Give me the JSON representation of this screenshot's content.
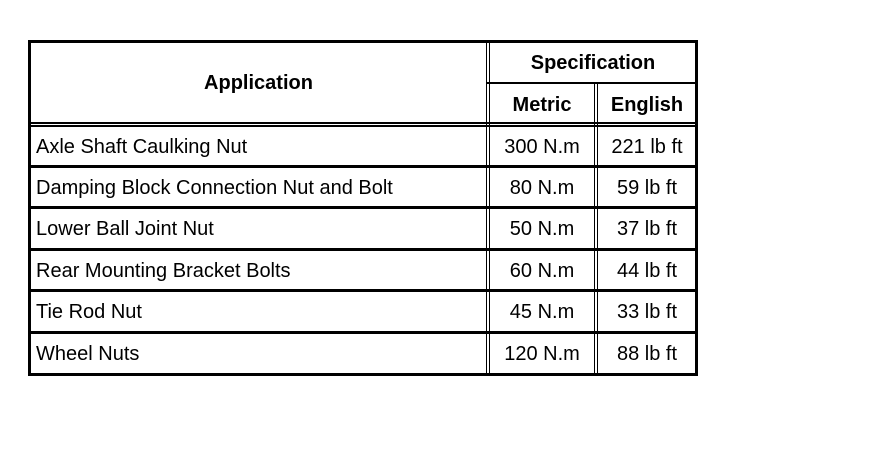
{
  "table": {
    "header": {
      "application": "Application",
      "specification": "Specification",
      "metric": "Metric",
      "english": "English"
    },
    "rows": [
      {
        "application": "Axle Shaft Caulking Nut",
        "metric": "300 N.m",
        "english": "221 lb ft"
      },
      {
        "application": "Damping Block Connection Nut and Bolt",
        "metric": "80 N.m",
        "english": "59 lb ft"
      },
      {
        "application": "Lower Ball Joint Nut",
        "metric": "50 N.m",
        "english": "37 lb ft"
      },
      {
        "application": "Rear Mounting Bracket Bolts",
        "metric": "60 N.m",
        "english": "44 lb ft"
      },
      {
        "application": "Tie Rod Nut",
        "metric": "45 N.m",
        "english": "33 lb ft"
      },
      {
        "application": "Wheel Nuts",
        "metric": "120 N.m",
        "english": "88 lb ft"
      }
    ]
  }
}
